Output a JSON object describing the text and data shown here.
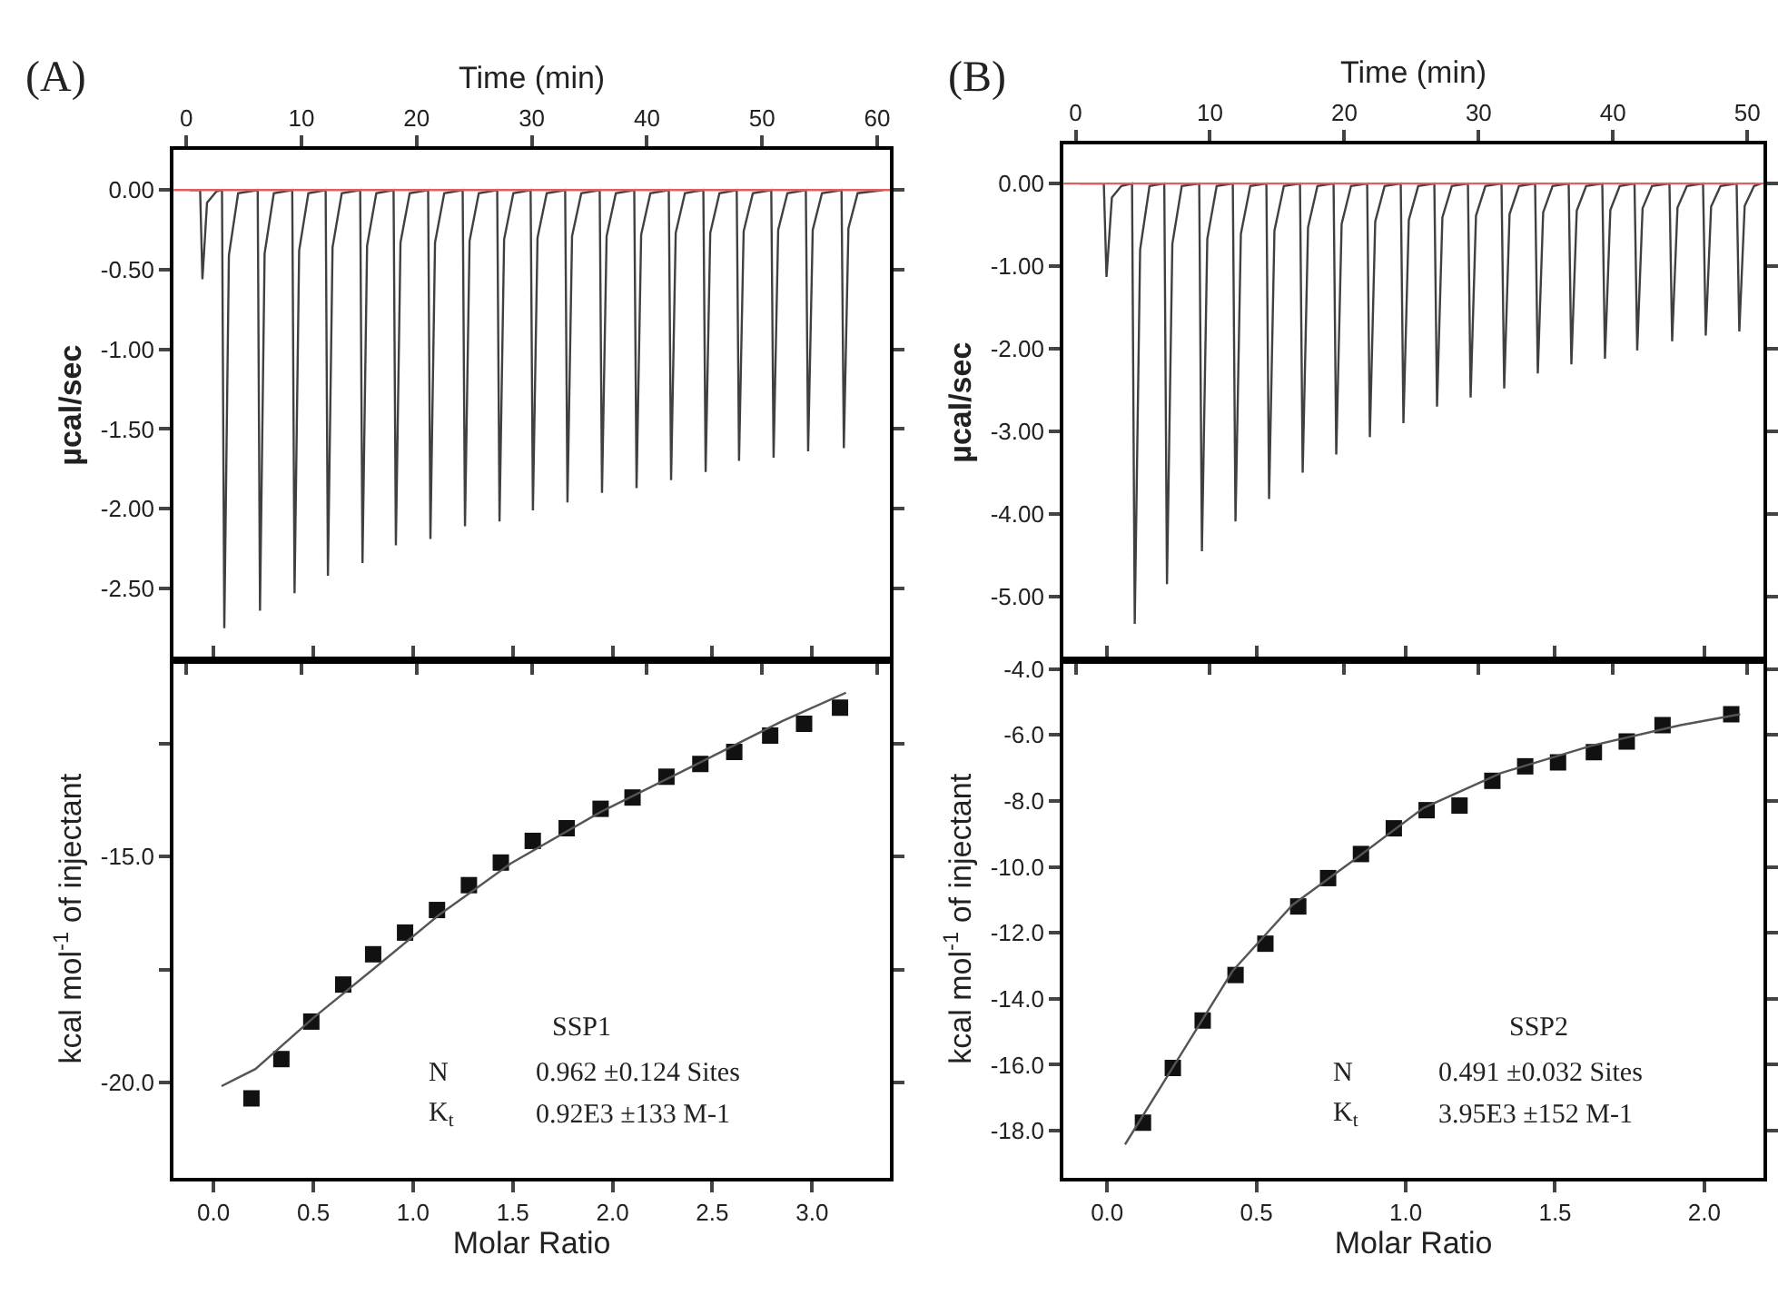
{
  "chart_data": [
    {
      "type": "line",
      "title": "(A)",
      "xlabel": "Time (min)",
      "ylabel": "µcal/sec",
      "marker": "none",
      "grid": false,
      "xlim": [
        -1.1,
        61.1
      ],
      "xticks": [
        0,
        10,
        20,
        30,
        40,
        50,
        60
      ],
      "ylim": [
        -2.95,
        0.25
      ],
      "yticks": [
        {
          "value": 0,
          "label": "0.00"
        },
        {
          "value": -0.5,
          "label": "-0.50"
        },
        {
          "value": -1,
          "label": "-1.00"
        },
        {
          "value": -1.5,
          "label": "-1.50"
        },
        {
          "value": -2,
          "label": "-2.00"
        },
        {
          "value": -2.5,
          "label": "-2.50"
        }
      ],
      "ref_lines": [
        {
          "axis": "y",
          "value": 0,
          "color": "#e06060"
        }
      ],
      "series": [
        {
          "color": "#404040",
          "x": [
            0.3,
            1.2,
            1.4,
            1.8,
            2.6,
            3.1,
            3.3,
            3.7,
            4.5,
            6.2,
            6.4,
            6.8,
            7.6,
            9.2,
            9.4,
            9.8,
            10.6,
            12.1,
            12.3,
            12.7,
            13.5,
            15.1,
            15.3,
            15.7,
            16.5,
            18.0,
            18.2,
            18.6,
            19.4,
            21.0,
            21.2,
            21.6,
            22.4,
            24.0,
            24.2,
            24.6,
            25.4,
            27.0,
            27.2,
            27.6,
            28.4,
            29.9,
            30.1,
            30.5,
            31.3,
            32.9,
            33.1,
            33.5,
            34.3,
            35.9,
            36.1,
            36.5,
            37.3,
            38.9,
            39.1,
            39.5,
            40.3,
            41.9,
            42.1,
            42.5,
            43.3,
            44.9,
            45.1,
            45.5,
            46.3,
            47.8,
            48.0,
            48.4,
            49.2,
            50.8,
            51.0,
            51.4,
            52.2,
            53.8,
            54.0,
            54.4,
            55.2,
            56.9,
            57.1,
            57.5,
            58.3,
            60.5
          ],
          "values": [
            0,
            0,
            -0.56,
            -0.08,
            -0.01,
            0,
            -2.75,
            -0.41,
            -0.02,
            0,
            -2.64,
            -0.4,
            -0.02,
            0,
            -2.53,
            -0.38,
            -0.02,
            0,
            -2.42,
            -0.36,
            -0.02,
            0,
            -2.34,
            -0.35,
            -0.02,
            0,
            -2.23,
            -0.33,
            -0.02,
            0,
            -2.19,
            -0.33,
            -0.02,
            0,
            -2.11,
            -0.32,
            -0.02,
            0,
            -2.08,
            -0.31,
            -0.02,
            0,
            -2.01,
            -0.3,
            -0.02,
            0,
            -1.96,
            -0.29,
            -0.02,
            0,
            -1.9,
            -0.29,
            -0.02,
            0,
            -1.87,
            -0.28,
            -0.02,
            0,
            -1.82,
            -0.27,
            -0.02,
            0,
            -1.77,
            -0.27,
            -0.02,
            0,
            -1.7,
            -0.26,
            -0.02,
            0,
            -1.68,
            -0.25,
            -0.02,
            0,
            -1.64,
            -0.25,
            -0.02,
            0,
            -1.62,
            -0.24,
            -0.02,
            0
          ]
        }
      ]
    },
    {
      "type": "scatter",
      "xlabel": "Molar Ratio",
      "ylabel": "kcal mol$^{-1}$ of injectant",
      "grid": false,
      "xlim": [
        -0.2,
        3.39
      ],
      "xticks": [
        {
          "value": 0,
          "label": "0.0"
        },
        {
          "value": 0.5,
          "label": "0.5"
        },
        {
          "value": 1,
          "label": "1.0"
        },
        {
          "value": 1.5,
          "label": "1.5"
        },
        {
          "value": 2,
          "label": "2.0"
        },
        {
          "value": 2.5,
          "label": "2.5"
        },
        {
          "value": 3,
          "label": "3.0"
        }
      ],
      "ylim": [
        -22.1,
        -10.65
      ],
      "yticks": [
        {
          "value": -12.5,
          "label": null
        },
        {
          "value": -15,
          "label": "-15.0"
        },
        {
          "value": -17.5,
          "label": null
        },
        {
          "value": -20,
          "label": "-20.0"
        }
      ],
      "annotations": [
        "SSP1",
        "N",
        "0.962 ±0.124 Sites",
        "K$_{t}$",
        "0.92E3 ±133 M-1"
      ],
      "series": [
        {
          "type": "scatter",
          "marker": "square",
          "color": "#111111",
          "x": [
            0.19,
            0.34,
            0.49,
            0.65,
            0.8,
            0.96,
            1.12,
            1.28,
            1.44,
            1.6,
            1.77,
            1.94,
            2.1,
            2.27,
            2.44,
            2.61,
            2.79,
            2.96,
            3.14
          ],
          "values": [
            -20.35,
            -19.48,
            -18.65,
            -17.83,
            -17.16,
            -16.68,
            -16.18,
            -15.63,
            -15.13,
            -14.65,
            -14.37,
            -13.94,
            -13.69,
            -13.23,
            -12.95,
            -12.68,
            -12.32,
            -12.06,
            -11.7
          ]
        },
        {
          "type": "line",
          "marker": "none",
          "color": "#555555",
          "x": [
            0.04,
            0.21,
            0.5,
            0.8,
            1.13,
            1.49,
            1.94,
            2.4,
            2.85,
            3.17
          ],
          "values": [
            -20.08,
            -19.7,
            -18.57,
            -17.49,
            -16.29,
            -15.15,
            -14.01,
            -13.0,
            -12.0,
            -11.37
          ]
        }
      ]
    },
    {
      "type": "line",
      "title": "(B)",
      "xlabel": "Time (min)",
      "ylabel": "µcal/sec",
      "marker": "none",
      "grid": false,
      "xlim": [
        -0.9,
        51.2
      ],
      "xticks": [
        0,
        10,
        20,
        30,
        40,
        50
      ],
      "ylim": [
        -5.77,
        0.47
      ],
      "yticks": [
        {
          "value": 0,
          "label": "0.00"
        },
        {
          "value": -1,
          "label": "-1.00"
        },
        {
          "value": -2,
          "label": "-2.00"
        },
        {
          "value": -3,
          "label": "-3.00"
        },
        {
          "value": -4,
          "label": "-4.00"
        },
        {
          "value": -5,
          "label": "-5.00"
        }
      ],
      "ref_lines": [
        {
          "axis": "y",
          "value": 0,
          "color": "#e06060"
        }
      ],
      "series": [
        {
          "color": "#404040",
          "x": [
            0.3,
            2.1,
            2.3,
            2.7,
            3.4,
            4.2,
            4.4,
            4.8,
            5.5,
            6.6,
            6.8,
            7.2,
            7.9,
            9.2,
            9.4,
            9.8,
            10.5,
            11.7,
            11.9,
            12.3,
            13.0,
            14.2,
            14.4,
            14.8,
            15.5,
            16.7,
            16.9,
            17.3,
            18.0,
            19.2,
            19.4,
            19.8,
            20.5,
            21.7,
            21.9,
            22.3,
            23.0,
            24.2,
            24.4,
            24.8,
            25.5,
            26.7,
            26.9,
            27.3,
            28.0,
            29.2,
            29.4,
            29.8,
            30.5,
            31.7,
            31.9,
            32.3,
            33.0,
            34.2,
            34.4,
            34.8,
            35.5,
            36.7,
            36.9,
            37.3,
            38.0,
            39.2,
            39.4,
            39.8,
            40.5,
            41.6,
            41.8,
            42.2,
            42.9,
            44.2,
            44.4,
            44.8,
            45.5,
            46.7,
            46.9,
            47.3,
            48.0,
            49.2,
            49.4,
            49.8,
            50.5,
            51.0
          ],
          "values": [
            0,
            0,
            -1.13,
            -0.17,
            -0.03,
            0,
            -5.33,
            -0.8,
            -0.03,
            0,
            -4.85,
            -0.73,
            -0.03,
            0,
            -4.45,
            -0.67,
            -0.03,
            0,
            -4.09,
            -0.61,
            -0.03,
            0,
            -3.82,
            -0.57,
            -0.03,
            0,
            -3.5,
            -0.53,
            -0.03,
            0,
            -3.28,
            -0.49,
            -0.03,
            0,
            -3.07,
            -0.46,
            -0.03,
            0,
            -2.9,
            -0.44,
            -0.03,
            0,
            -2.7,
            -0.41,
            -0.03,
            0,
            -2.59,
            -0.39,
            -0.03,
            0,
            -2.48,
            -0.37,
            -0.03,
            0,
            -2.3,
            -0.35,
            -0.03,
            0,
            -2.19,
            -0.33,
            -0.03,
            0,
            -2.12,
            -0.32,
            -0.03,
            0,
            -2.02,
            -0.3,
            -0.03,
            0,
            -1.91,
            -0.29,
            -0.03,
            0,
            -1.84,
            -0.28,
            -0.03,
            0,
            -1.79,
            -0.27,
            -0.03,
            0
          ]
        }
      ]
    },
    {
      "type": "scatter",
      "xlabel": "Molar Ratio",
      "ylabel": "kcal mol$^{-1}$ of injectant",
      "grid": false,
      "xlim": [
        -0.146,
        2.198
      ],
      "xticks": [
        {
          "value": 0,
          "label": "0.0"
        },
        {
          "value": 0.5,
          "label": "0.5"
        },
        {
          "value": 1,
          "label": "1.0"
        },
        {
          "value": 1.5,
          "label": "1.5"
        },
        {
          "value": 2,
          "label": "2.0"
        }
      ],
      "ylim": [
        -19.42,
        -3.73
      ],
      "yticks": [
        {
          "value": -4,
          "label": "-4.0"
        },
        {
          "value": -6,
          "label": "-6.0"
        },
        {
          "value": -8,
          "label": "-8.0"
        },
        {
          "value": -10,
          "label": "-10.0"
        },
        {
          "value": -12,
          "label": "-12.0"
        },
        {
          "value": -14,
          "label": "-14.0"
        },
        {
          "value": -16,
          "label": "-16.0"
        },
        {
          "value": -18,
          "label": "-18.0"
        }
      ],
      "annotations": [
        "SSP2",
        "N",
        "0.491 ±0.032 Sites",
        "K$_{t}$",
        "3.95E3 ±152 M-1"
      ],
      "series": [
        {
          "type": "scatter",
          "marker": "square",
          "color": "#111111",
          "x": [
            0.12,
            0.22,
            0.32,
            0.43,
            0.53,
            0.64,
            0.74,
            0.85,
            0.96,
            1.07,
            1.18,
            1.29,
            1.4,
            1.51,
            1.63,
            1.74,
            1.86,
            2.09
          ],
          "values": [
            -17.76,
            -16.1,
            -14.66,
            -13.28,
            -12.33,
            -11.2,
            -10.34,
            -9.61,
            -8.83,
            -8.28,
            -8.14,
            -7.39,
            -6.95,
            -6.83,
            -6.52,
            -6.2,
            -5.7,
            -5.37
          ]
        },
        {
          "type": "line",
          "marker": "none",
          "color": "#555555",
          "x": [
            0.06,
            0.22,
            0.42,
            0.62,
            0.84,
            1.06,
            1.32,
            1.62,
            1.92,
            2.12
          ],
          "values": [
            -18.42,
            -16.08,
            -13.16,
            -11.16,
            -9.7,
            -8.21,
            -7.15,
            -6.33,
            -5.7,
            -5.37
          ]
        }
      ]
    }
  ]
}
